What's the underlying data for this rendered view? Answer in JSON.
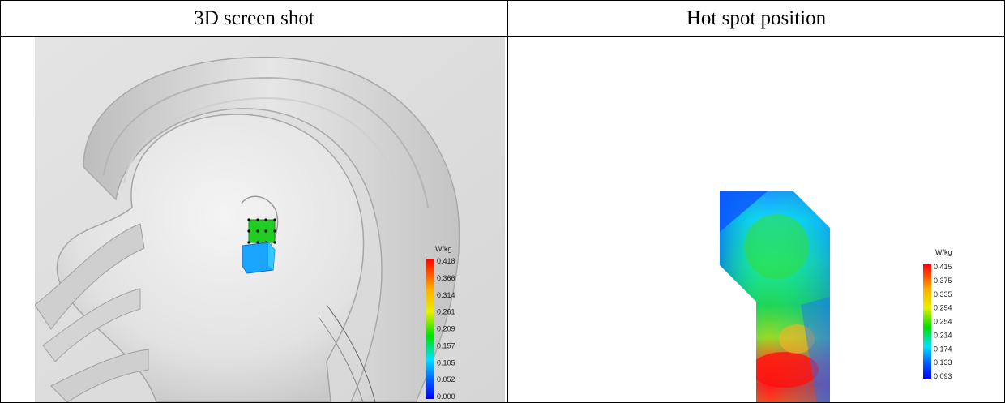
{
  "headers": {
    "left": "3D screen shot",
    "right": "Hot spot position"
  },
  "left_scale": {
    "unit": "W/kg",
    "ticks": [
      "0.418",
      "0.366",
      "0.314",
      "0.261",
      "0.209",
      "0.157",
      "0.105",
      "0.052",
      "0.000"
    ]
  },
  "right_scale": {
    "unit": "W/kg",
    "ticks": [
      "0.415",
      "0.375",
      "0.335",
      "0.294",
      "0.254",
      "0.214",
      "0.174",
      "0.133",
      "0.093"
    ]
  }
}
